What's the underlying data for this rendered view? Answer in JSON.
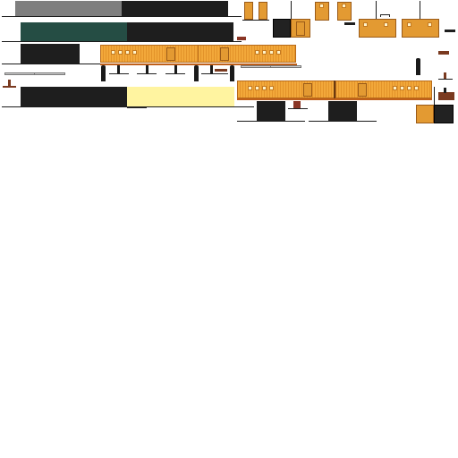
{
  "sprite_sheet": {
    "background": "#ffffff",
    "colors": {
      "gray_slab": "#7f7f7f",
      "dark_slab": "#1e1e1e",
      "green_slab": "#254d44",
      "yellow_slab": "#fff4a0",
      "wagon_orange": "#f2a83a",
      "wagon_shadow": "#e3932a",
      "window": "#fff3c8",
      "outline": "#1a1a1a",
      "brown": "#7a3a20"
    },
    "sprites": [
      "gray-slab",
      "green-slab",
      "dark-slab",
      "yellow-slab",
      "orange-wagon",
      "booth",
      "pillar",
      "bench",
      "sign-rail"
    ]
  }
}
